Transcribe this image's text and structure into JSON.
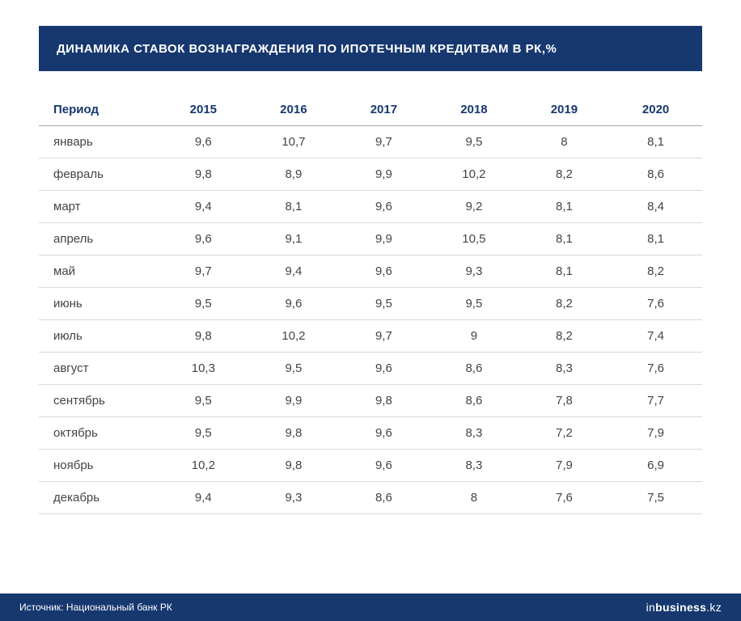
{
  "title": "ДИНАМИКА СТАВОК ВОЗНАГРАЖДЕНИЯ ПО ИПОТЕЧНЫМ КРЕДИТВАМ В РК,%",
  "title_fontsize": 15,
  "colors": {
    "title_bg": "#17386f",
    "footer_bg": "#17386f",
    "header_text": "#17386f",
    "body_text": "#444444",
    "row_divider": "#d9d9d9",
    "header_divider": "#a9a9a9",
    "page_bg": "#ffffff"
  },
  "table": {
    "type": "table",
    "period_header": "Период",
    "columns": [
      "2015",
      "2016",
      "2017",
      "2018",
      "2019",
      "2020"
    ],
    "col_widths_pct": [
      18,
      13.6,
      13.6,
      13.6,
      13.6,
      13.6,
      14
    ],
    "header_fontsize": 15,
    "cell_fontsize": 15,
    "rows": [
      {
        "label": "январь",
        "v": [
          "9,6",
          "10,7",
          "9,7",
          "9,5",
          "8",
          "8,1"
        ]
      },
      {
        "label": "февраль",
        "v": [
          "9,8",
          "8,9",
          "9,9",
          "10,2",
          "8,2",
          "8,6"
        ]
      },
      {
        "label": "март",
        "v": [
          "9,4",
          "8,1",
          "9,6",
          "9,2",
          "8,1",
          "8,4"
        ]
      },
      {
        "label": "апрель",
        "v": [
          "9,6",
          "9,1",
          "9,9",
          "10,5",
          "8,1",
          "8,1"
        ]
      },
      {
        "label": "май",
        "v": [
          "9,7",
          "9,4",
          "9,6",
          "9,3",
          "8,1",
          "8,2"
        ]
      },
      {
        "label": "июнь",
        "v": [
          "9,5",
          "9,6",
          "9,5",
          "9,5",
          "8,2",
          "7,6"
        ]
      },
      {
        "label": "июль",
        "v": [
          "9,8",
          "10,2",
          "9,7",
          "9",
          "8,2",
          "7,4"
        ]
      },
      {
        "label": "август",
        "v": [
          "10,3",
          "9,5",
          "9,6",
          "8,6",
          "8,3",
          "7,6"
        ]
      },
      {
        "label": "сентябрь",
        "v": [
          "9,5",
          "9,9",
          "9,8",
          "8,6",
          "7,8",
          "7,7"
        ]
      },
      {
        "label": "октябрь",
        "v": [
          "9,5",
          "9,8",
          "9,6",
          "8,3",
          "7,2",
          "7,9"
        ]
      },
      {
        "label": "ноябрь",
        "v": [
          "10,2",
          "9,8",
          "9,6",
          "8,3",
          "7,9",
          "6,9"
        ]
      },
      {
        "label": "декабрь",
        "v": [
          "9,4",
          "9,3",
          "8,6",
          "8",
          "7,6",
          "7,5"
        ]
      }
    ]
  },
  "footer": {
    "source": "Источник: Национальный банк РК",
    "brand_prefix": "in",
    "brand_main": "business",
    "brand_suffix": ".kz"
  }
}
